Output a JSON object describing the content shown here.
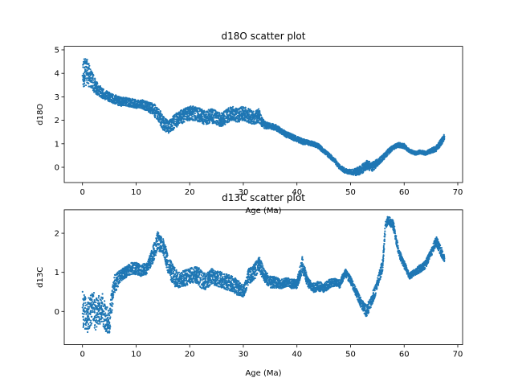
{
  "chart_data": [
    {
      "type": "scatter",
      "title": "d18O scatter plot",
      "xlabel": "Age (Ma)",
      "ylabel": "d18O",
      "xlim": [
        -3.4,
        70.9
      ],
      "ylim": [
        -0.65,
        5.15
      ],
      "xticks": [
        0,
        10,
        20,
        30,
        40,
        50,
        60,
        70
      ],
      "yticks": [
        0,
        1,
        2,
        3,
        4,
        5
      ],
      "grid": false,
      "color": "#1f77b4",
      "series": [
        {
          "x": [
            0.0,
            0.5,
            1.0,
            1.5,
            2.0,
            2.5,
            3.0,
            4.0,
            5.0,
            6.0,
            7.0,
            8.0,
            9.0,
            10.0,
            11.0,
            12.0,
            13.0,
            14.0,
            15.0,
            16.0,
            17.0,
            18.0,
            19.0,
            20.0,
            21.0,
            22.0,
            23.0,
            24.0,
            25.0,
            26.0,
            27.0,
            28.0,
            29.0,
            30.0,
            31.0,
            32.0,
            33.0,
            33.5,
            34.0,
            35.0,
            36.0,
            37.0,
            38.0,
            39.0,
            40.0,
            41.0,
            42.0,
            43.0,
            44.0,
            45.0,
            46.0,
            47.0,
            48.0,
            49.0,
            50.0,
            51.0,
            52.0,
            53.0,
            54.0,
            55.0,
            56.0,
            57.0,
            58.0,
            59.0,
            60.0,
            61.0,
            62.0,
            63.0,
            64.0,
            65.0,
            66.0,
            67.0,
            67.5
          ],
          "y": [
            3.9,
            4.1,
            4.0,
            3.8,
            3.6,
            3.4,
            3.3,
            3.1,
            3.0,
            2.9,
            2.8,
            2.8,
            2.75,
            2.7,
            2.7,
            2.6,
            2.5,
            2.3,
            1.9,
            1.7,
            1.9,
            2.1,
            2.2,
            2.3,
            2.3,
            2.2,
            2.1,
            2.2,
            2.1,
            2.0,
            2.2,
            2.3,
            2.2,
            2.3,
            2.2,
            2.1,
            2.2,
            1.9,
            1.8,
            1.75,
            1.7,
            1.55,
            1.4,
            1.3,
            1.2,
            1.1,
            1.05,
            1.0,
            0.9,
            0.7,
            0.5,
            0.3,
            0.0,
            -0.15,
            -0.2,
            -0.2,
            -0.1,
            0.1,
            0.0,
            0.2,
            0.4,
            0.65,
            0.85,
            0.95,
            0.9,
            0.7,
            0.6,
            0.65,
            0.6,
            0.7,
            0.8,
            1.1,
            1.3
          ],
          "spread": [
            0.55,
            0.6,
            0.55,
            0.4,
            0.35,
            0.3,
            0.25,
            0.2,
            0.2,
            0.2,
            0.2,
            0.18,
            0.18,
            0.18,
            0.18,
            0.2,
            0.25,
            0.3,
            0.3,
            0.25,
            0.3,
            0.3,
            0.3,
            0.3,
            0.3,
            0.3,
            0.3,
            0.3,
            0.3,
            0.3,
            0.3,
            0.3,
            0.3,
            0.3,
            0.3,
            0.3,
            0.3,
            0.2,
            0.15,
            0.12,
            0.12,
            0.12,
            0.12,
            0.12,
            0.12,
            0.12,
            0.1,
            0.1,
            0.1,
            0.1,
            0.1,
            0.1,
            0.1,
            0.1,
            0.1,
            0.15,
            0.2,
            0.2,
            0.2,
            0.15,
            0.12,
            0.12,
            0.1,
            0.1,
            0.1,
            0.08,
            0.08,
            0.08,
            0.08,
            0.1,
            0.12,
            0.15,
            0.12
          ]
        }
      ]
    },
    {
      "type": "scatter",
      "title": "d13C scatter plot",
      "xlabel": "Age (Ma)",
      "ylabel": "d13C",
      "xlim": [
        -3.4,
        70.9
      ],
      "ylim": [
        -0.85,
        2.6
      ],
      "xticks": [
        0,
        10,
        20,
        30,
        40,
        50,
        60,
        70
      ],
      "yticks": [
        0,
        1,
        2
      ],
      "grid": false,
      "color": "#1f77b4",
      "series": [
        {
          "x": [
            0.0,
            0.5,
            1.0,
            1.5,
            2.0,
            2.5,
            3.0,
            3.5,
            4.0,
            4.5,
            5.0,
            5.5,
            6.0,
            7.0,
            8.0,
            9.0,
            10.0,
            11.0,
            12.0,
            13.0,
            14.0,
            15.0,
            16.0,
            17.0,
            18.0,
            19.0,
            20.0,
            21.0,
            22.0,
            23.0,
            24.0,
            25.0,
            26.0,
            27.0,
            28.0,
            29.0,
            30.0,
            31.0,
            32.0,
            33.0,
            34.0,
            35.0,
            36.0,
            37.0,
            38.0,
            39.0,
            40.0,
            41.0,
            42.0,
            43.0,
            44.0,
            45.0,
            46.0,
            47.0,
            48.0,
            49.0,
            50.0,
            51.0,
            52.0,
            53.0,
            54.0,
            55.0,
            56.0,
            56.5,
            57.0,
            58.0,
            59.0,
            60.0,
            61.0,
            62.0,
            63.0,
            64.0,
            65.0,
            66.0,
            67.0,
            67.5
          ],
          "y": [
            0.1,
            0.0,
            -0.1,
            0.0,
            0.1,
            -0.1,
            0.0,
            0.1,
            0.0,
            -0.2,
            -0.3,
            0.3,
            0.7,
            0.9,
            1.0,
            1.1,
            1.1,
            1.05,
            1.1,
            1.4,
            1.8,
            1.7,
            1.2,
            0.9,
            0.8,
            0.85,
            0.9,
            0.95,
            0.85,
            0.75,
            0.9,
            0.85,
            0.8,
            0.75,
            0.7,
            0.6,
            0.5,
            0.9,
            1.0,
            1.2,
            0.9,
            0.75,
            0.75,
            0.7,
            0.75,
            0.7,
            0.7,
            1.2,
            0.75,
            0.6,
            0.65,
            0.6,
            0.7,
            0.75,
            0.7,
            1.0,
            0.8,
            0.5,
            0.2,
            0.0,
            0.3,
            0.7,
            1.2,
            2.2,
            2.35,
            2.2,
            1.5,
            1.2,
            0.9,
            1.0,
            1.1,
            1.2,
            1.5,
            1.8,
            1.5,
            1.35
          ],
          "spread": [
            0.5,
            0.45,
            0.45,
            0.45,
            0.45,
            0.45,
            0.4,
            0.4,
            0.4,
            0.35,
            0.3,
            0.3,
            0.25,
            0.15,
            0.15,
            0.15,
            0.15,
            0.15,
            0.15,
            0.2,
            0.25,
            0.2,
            0.25,
            0.25,
            0.2,
            0.2,
            0.2,
            0.2,
            0.25,
            0.2,
            0.2,
            0.2,
            0.2,
            0.2,
            0.2,
            0.2,
            0.15,
            0.2,
            0.2,
            0.2,
            0.15,
            0.15,
            0.15,
            0.12,
            0.12,
            0.12,
            0.12,
            0.2,
            0.12,
            0.12,
            0.12,
            0.12,
            0.12,
            0.1,
            0.1,
            0.1,
            0.1,
            0.1,
            0.12,
            0.15,
            0.15,
            0.15,
            0.15,
            0.1,
            0.1,
            0.12,
            0.1,
            0.1,
            0.08,
            0.08,
            0.1,
            0.1,
            0.1,
            0.12,
            0.12,
            0.08
          ]
        }
      ]
    }
  ]
}
